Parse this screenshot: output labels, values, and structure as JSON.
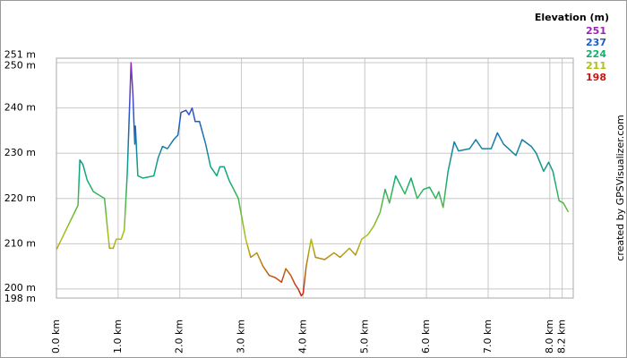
{
  "chart_data": {
    "type": "line",
    "legend_title": "Elevation (m)",
    "credit": "created by GPSVisualizer.com",
    "color_scale": [
      {
        "value": 251,
        "color": "#a020c0"
      },
      {
        "value": 237,
        "color": "#1c5cc8"
      },
      {
        "value": 224,
        "color": "#10b070"
      },
      {
        "value": 211,
        "color": "#b0c010"
      },
      {
        "value": 198,
        "color": "#c81810"
      }
    ],
    "x": [
      0.0,
      0.35,
      0.38,
      0.43,
      0.5,
      0.6,
      0.78,
      0.83,
      0.86,
      0.92,
      0.97,
      1.05,
      1.1,
      1.15,
      1.21,
      1.24,
      1.27,
      1.28,
      1.32,
      1.4,
      1.58,
      1.65,
      1.72,
      1.8,
      1.9,
      1.97,
      2.02,
      2.1,
      2.15,
      2.2,
      2.25,
      2.32,
      2.42,
      2.5,
      2.6,
      2.65,
      2.72,
      2.8,
      2.95,
      3.07,
      3.15,
      3.25,
      3.35,
      3.45,
      3.55,
      3.65,
      3.72,
      3.8,
      3.87,
      3.92,
      3.97,
      4.0,
      4.05,
      4.13,
      4.2,
      4.35,
      4.5,
      4.6,
      4.75,
      4.85,
      4.95,
      5.05,
      5.15,
      5.25,
      5.33,
      5.4,
      5.5,
      5.65,
      5.75,
      5.85,
      5.95,
      6.05,
      6.15,
      6.2,
      6.27,
      6.35,
      6.45,
      6.52,
      6.7,
      6.8,
      6.9,
      7.05,
      7.15,
      7.25,
      7.45,
      7.55,
      7.7,
      7.78,
      7.9,
      7.98,
      8.05,
      8.15,
      8.22,
      8.3
    ],
    "series": [
      {
        "values": [
          208.7,
          218.5,
          228.5,
          227.5,
          224,
          221.5,
          220,
          213,
          209,
          209,
          211,
          211,
          213,
          226,
          250,
          243,
          232,
          236,
          225,
          224.5,
          225,
          229,
          231.5,
          231,
          233,
          234,
          239,
          239.5,
          238.5,
          240,
          237,
          237,
          232,
          227,
          225,
          227,
          227,
          224,
          220,
          211,
          207,
          208,
          205,
          203,
          202.5,
          201.5,
          204.5,
          203,
          201,
          200,
          198.5,
          199,
          205,
          211,
          207,
          206.5,
          208,
          207,
          209,
          207.5,
          211,
          212,
          214,
          217,
          222,
          219,
          225,
          221,
          224.5,
          220,
          222,
          222.5,
          220,
          221.5,
          218,
          226,
          232.5,
          230.5,
          231,
          233,
          231,
          231,
          234.5,
          232,
          229.5,
          233,
          231.5,
          230,
          226,
          228,
          226,
          219.5,
          219,
          217
        ]
      }
    ],
    "xlim": [
      0,
      8.38
    ],
    "ylim": [
      198,
      251
    ],
    "xticks": [
      {
        "value": 0,
        "label": "0.0 km"
      },
      {
        "value": 1,
        "label": "1.0 km"
      },
      {
        "value": 2,
        "label": "2.0 km"
      },
      {
        "value": 3,
        "label": "3.0 km"
      },
      {
        "value": 4,
        "label": "4.0 km"
      },
      {
        "value": 5,
        "label": "5.0 km"
      },
      {
        "value": 6,
        "label": "6.0 km"
      },
      {
        "value": 7,
        "label": "7.0 km"
      },
      {
        "value": 8,
        "label": "8.0 km"
      },
      {
        "value": 8.2,
        "label": "8.2 km"
      }
    ],
    "yticks": [
      {
        "value": 198,
        "label": "198 m"
      },
      {
        "value": 200,
        "label": "200 m"
      },
      {
        "value": 210,
        "label": "210 m"
      },
      {
        "value": 220,
        "label": "220 m"
      },
      {
        "value": 230,
        "label": "230 m"
      },
      {
        "value": 240,
        "label": "240 m"
      },
      {
        "value": 250,
        "label": "250 m"
      },
      {
        "value": 251,
        "label": "251 m"
      }
    ],
    "grid": true
  }
}
